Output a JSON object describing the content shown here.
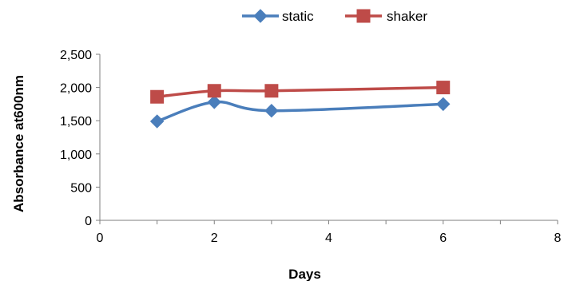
{
  "chart_data": {
    "type": "scatter",
    "xlabel": "Days",
    "ylabel": "Absorbance at600nm",
    "xlim": [
      0,
      8
    ],
    "ylim": [
      0,
      2500
    ],
    "x_ticks": [
      0,
      2,
      4,
      6,
      8
    ],
    "y_ticks": [
      0,
      500,
      1000,
      1500,
      2000,
      2500
    ],
    "x_tick_labels": [
      "0",
      "2",
      "4",
      "6",
      "8"
    ],
    "y_tick_labels": [
      "0",
      "500",
      "1,000",
      "1,500",
      "2,000",
      "2,500"
    ],
    "grid": false,
    "legend_position": "top",
    "smooth_lines": true,
    "series": [
      {
        "name": "static",
        "color": "#4a7ebb",
        "marker": "diamond",
        "x": [
          1,
          2,
          3,
          6
        ],
        "y": [
          1490,
          1780,
          1650,
          1750
        ]
      },
      {
        "name": "shaker",
        "color": "#be4b48",
        "marker": "square",
        "x": [
          1,
          2,
          3,
          6
        ],
        "y": [
          1860,
          1950,
          1950,
          2000
        ]
      }
    ]
  }
}
